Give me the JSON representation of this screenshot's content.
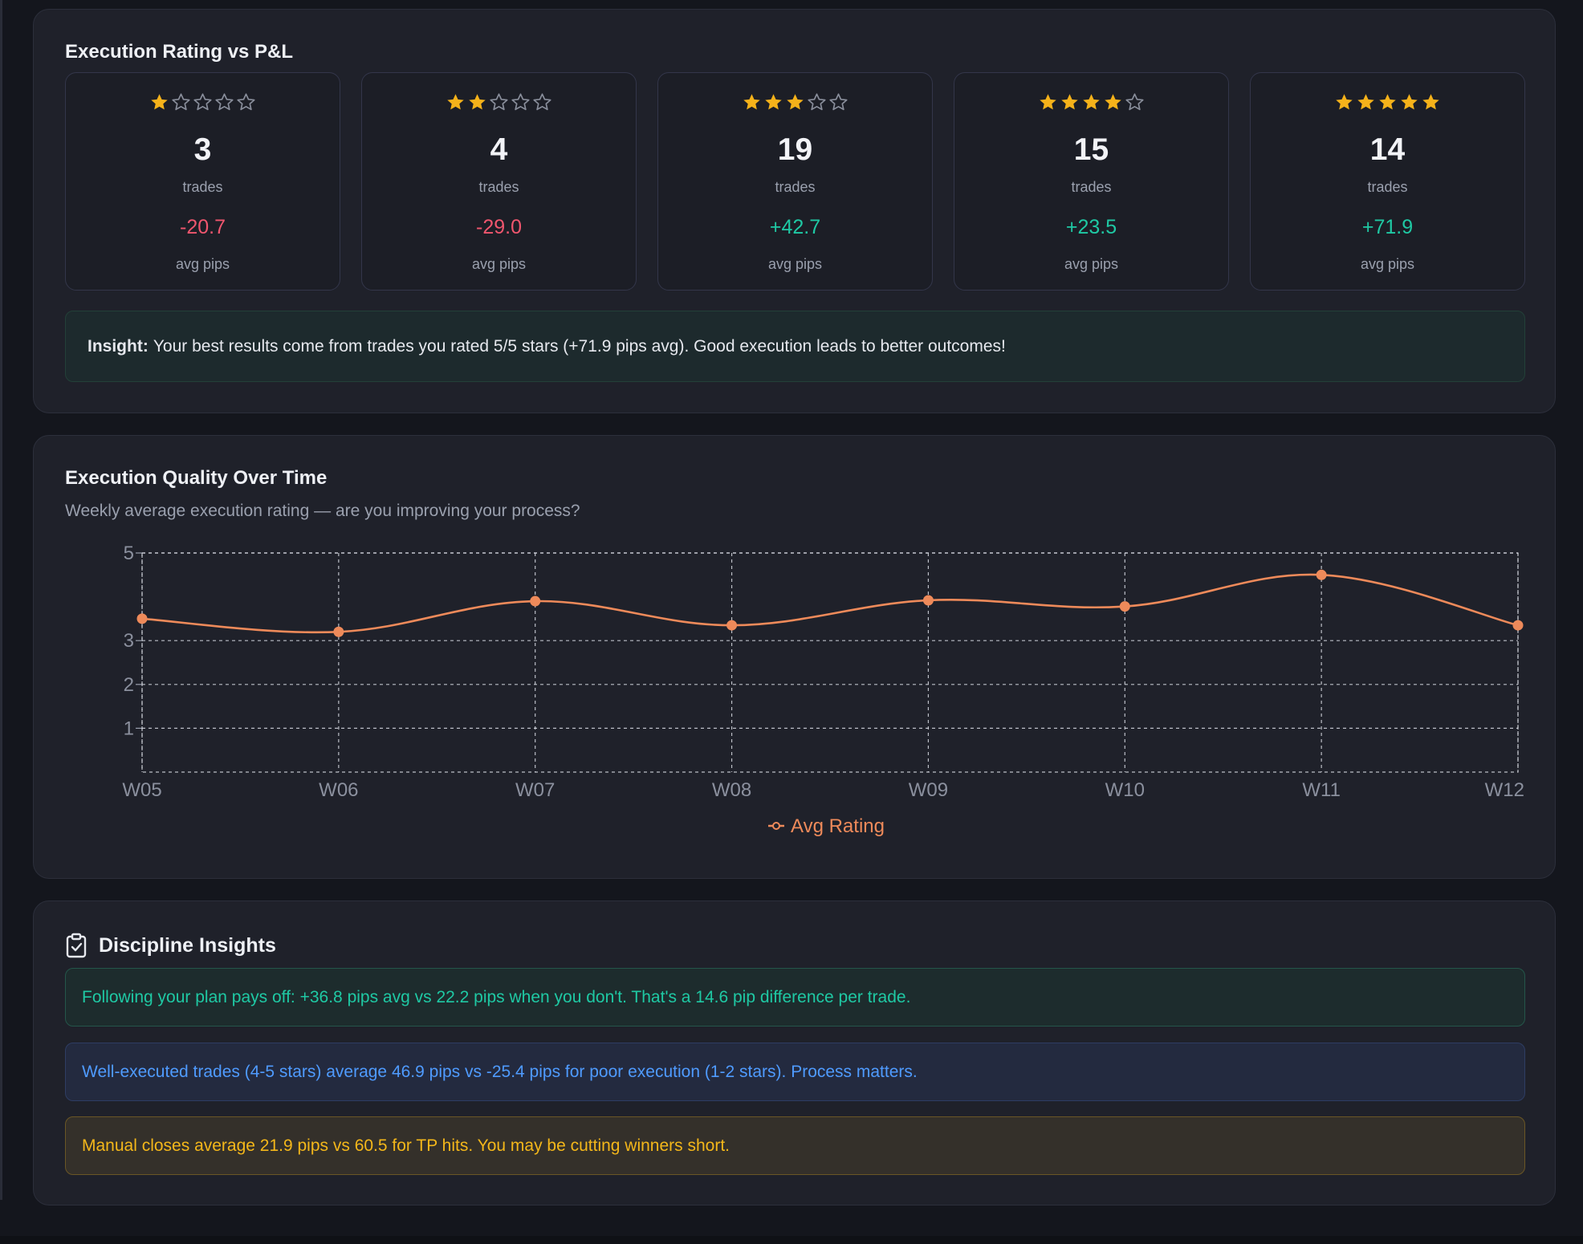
{
  "colors": {
    "star_filled": "#f5b21a",
    "star_empty": "#8a8f9c",
    "negative": "#f0566e",
    "positive": "#1fc9a4",
    "line": "#ee8a5a"
  },
  "rating_section": {
    "title": "Execution Rating vs P&L",
    "cards": [
      {
        "stars": 1,
        "count": "3",
        "count_label": "trades",
        "pips": "-20.7",
        "pips_label": "avg pips",
        "sign": "neg"
      },
      {
        "stars": 2,
        "count": "4",
        "count_label": "trades",
        "pips": "-29.0",
        "pips_label": "avg pips",
        "sign": "neg"
      },
      {
        "stars": 3,
        "count": "19",
        "count_label": "trades",
        "pips": "+42.7",
        "pips_label": "avg pips",
        "sign": "pos"
      },
      {
        "stars": 4,
        "count": "15",
        "count_label": "trades",
        "pips": "+23.5",
        "pips_label": "avg pips",
        "sign": "pos"
      },
      {
        "stars": 5,
        "count": "14",
        "count_label": "trades",
        "pips": "+71.9",
        "pips_label": "avg pips",
        "sign": "pos"
      }
    ],
    "insight_label": "Insight:",
    "insight_text": "Your best results come from trades you rated 5/5 stars (+71.9 pips avg). Good execution leads to better outcomes!"
  },
  "quality_section": {
    "title": "Execution Quality Over Time",
    "subtitle": "Weekly average execution rating — are you improving your process?"
  },
  "chart_data": {
    "type": "line",
    "categories": [
      "W05",
      "W06",
      "W07",
      "W08",
      "W09",
      "W10",
      "W11",
      "W12"
    ],
    "series": [
      {
        "name": "Avg Rating",
        "values": [
          3.5,
          3.2,
          3.9,
          3.35,
          3.92,
          3.78,
          4.5,
          3.35
        ]
      }
    ],
    "y_ticks": [
      "1",
      "2",
      "3",
      "5"
    ],
    "ylim": [
      0,
      5
    ],
    "grid": true,
    "grid_style": "dashed",
    "legend_position": "bottom-center",
    "smooth": true
  },
  "discipline_section": {
    "icon": "clipboard-check-icon",
    "title": "Discipline Insights",
    "items": [
      "Following your plan pays off: +36.8 pips avg vs 22.2 pips when you don't. That's a 14.6 pip difference per trade.",
      "Well-executed trades (4-5 stars) average 46.9 pips vs -25.4 pips for poor execution (1-2 stars). Process matters.",
      "Manual closes average 21.9 pips vs 60.5 for TP hits. You may be cutting winners short."
    ]
  }
}
